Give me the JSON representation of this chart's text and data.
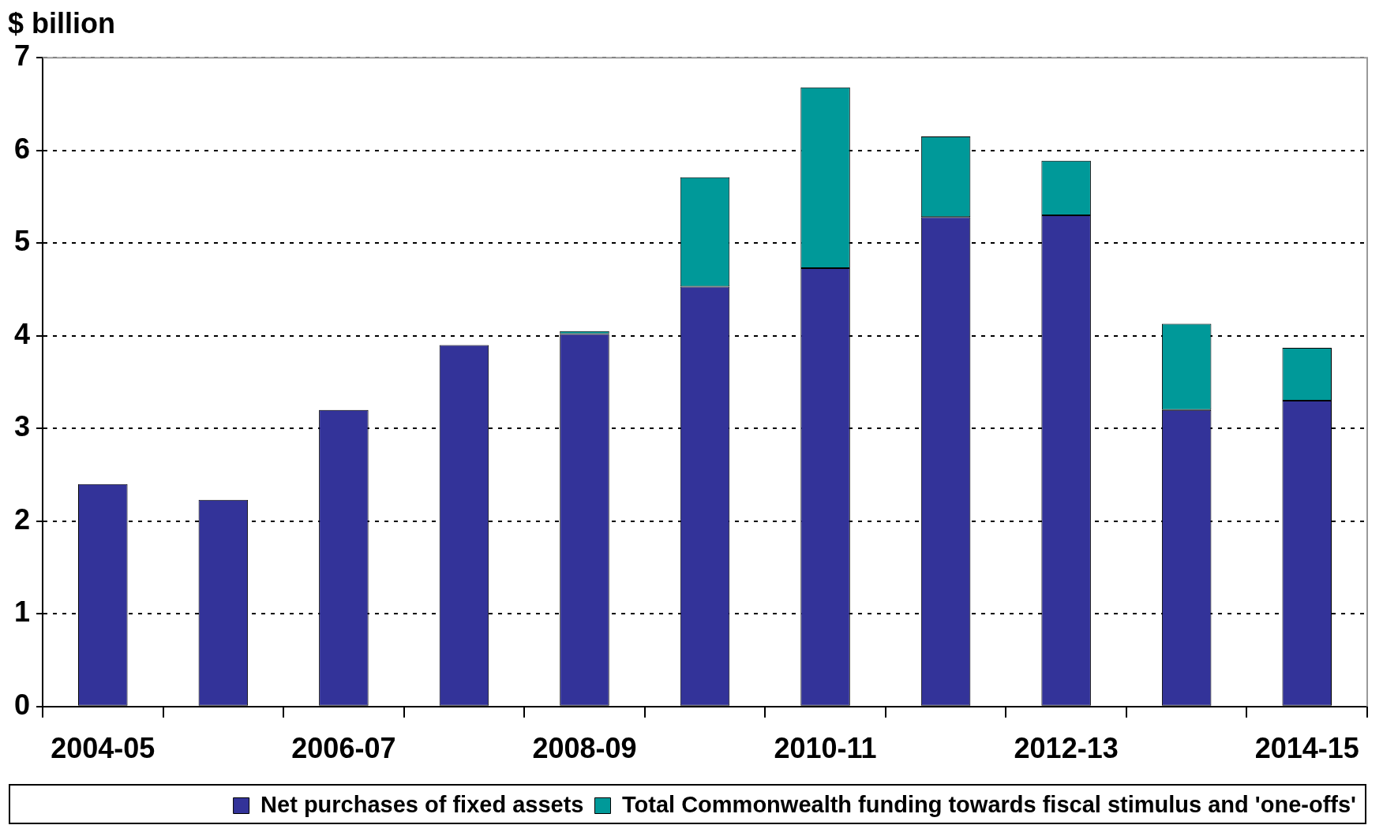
{
  "chart_data": {
    "type": "bar",
    "ylabel": "$ billion",
    "categories": [
      "2004-05",
      null,
      "2006-07",
      null,
      "2008-09",
      null,
      "2010-11",
      null,
      "2012-13",
      null,
      "2014-15"
    ],
    "series": [
      {
        "name": "Net purchases of fixed assets",
        "color": "#333399",
        "values": [
          2.4,
          2.23,
          3.2,
          3.9,
          4.02,
          4.53,
          4.73,
          5.28,
          5.3,
          3.2,
          3.3
        ]
      },
      {
        "name": "Total Commonwealth funding towards fiscal stimulus and 'one-offs'",
        "color": "#009999",
        "values": [
          null,
          null,
          null,
          null,
          0.03,
          1.18,
          1.95,
          0.87,
          0.59,
          0.93,
          0.57
        ]
      }
    ],
    "stacked": true,
    "ylim": [
      0,
      7
    ],
    "yticks": [
      0,
      1,
      2,
      3,
      4,
      5,
      6,
      7
    ],
    "grid": "y",
    "legend": "bottom"
  }
}
